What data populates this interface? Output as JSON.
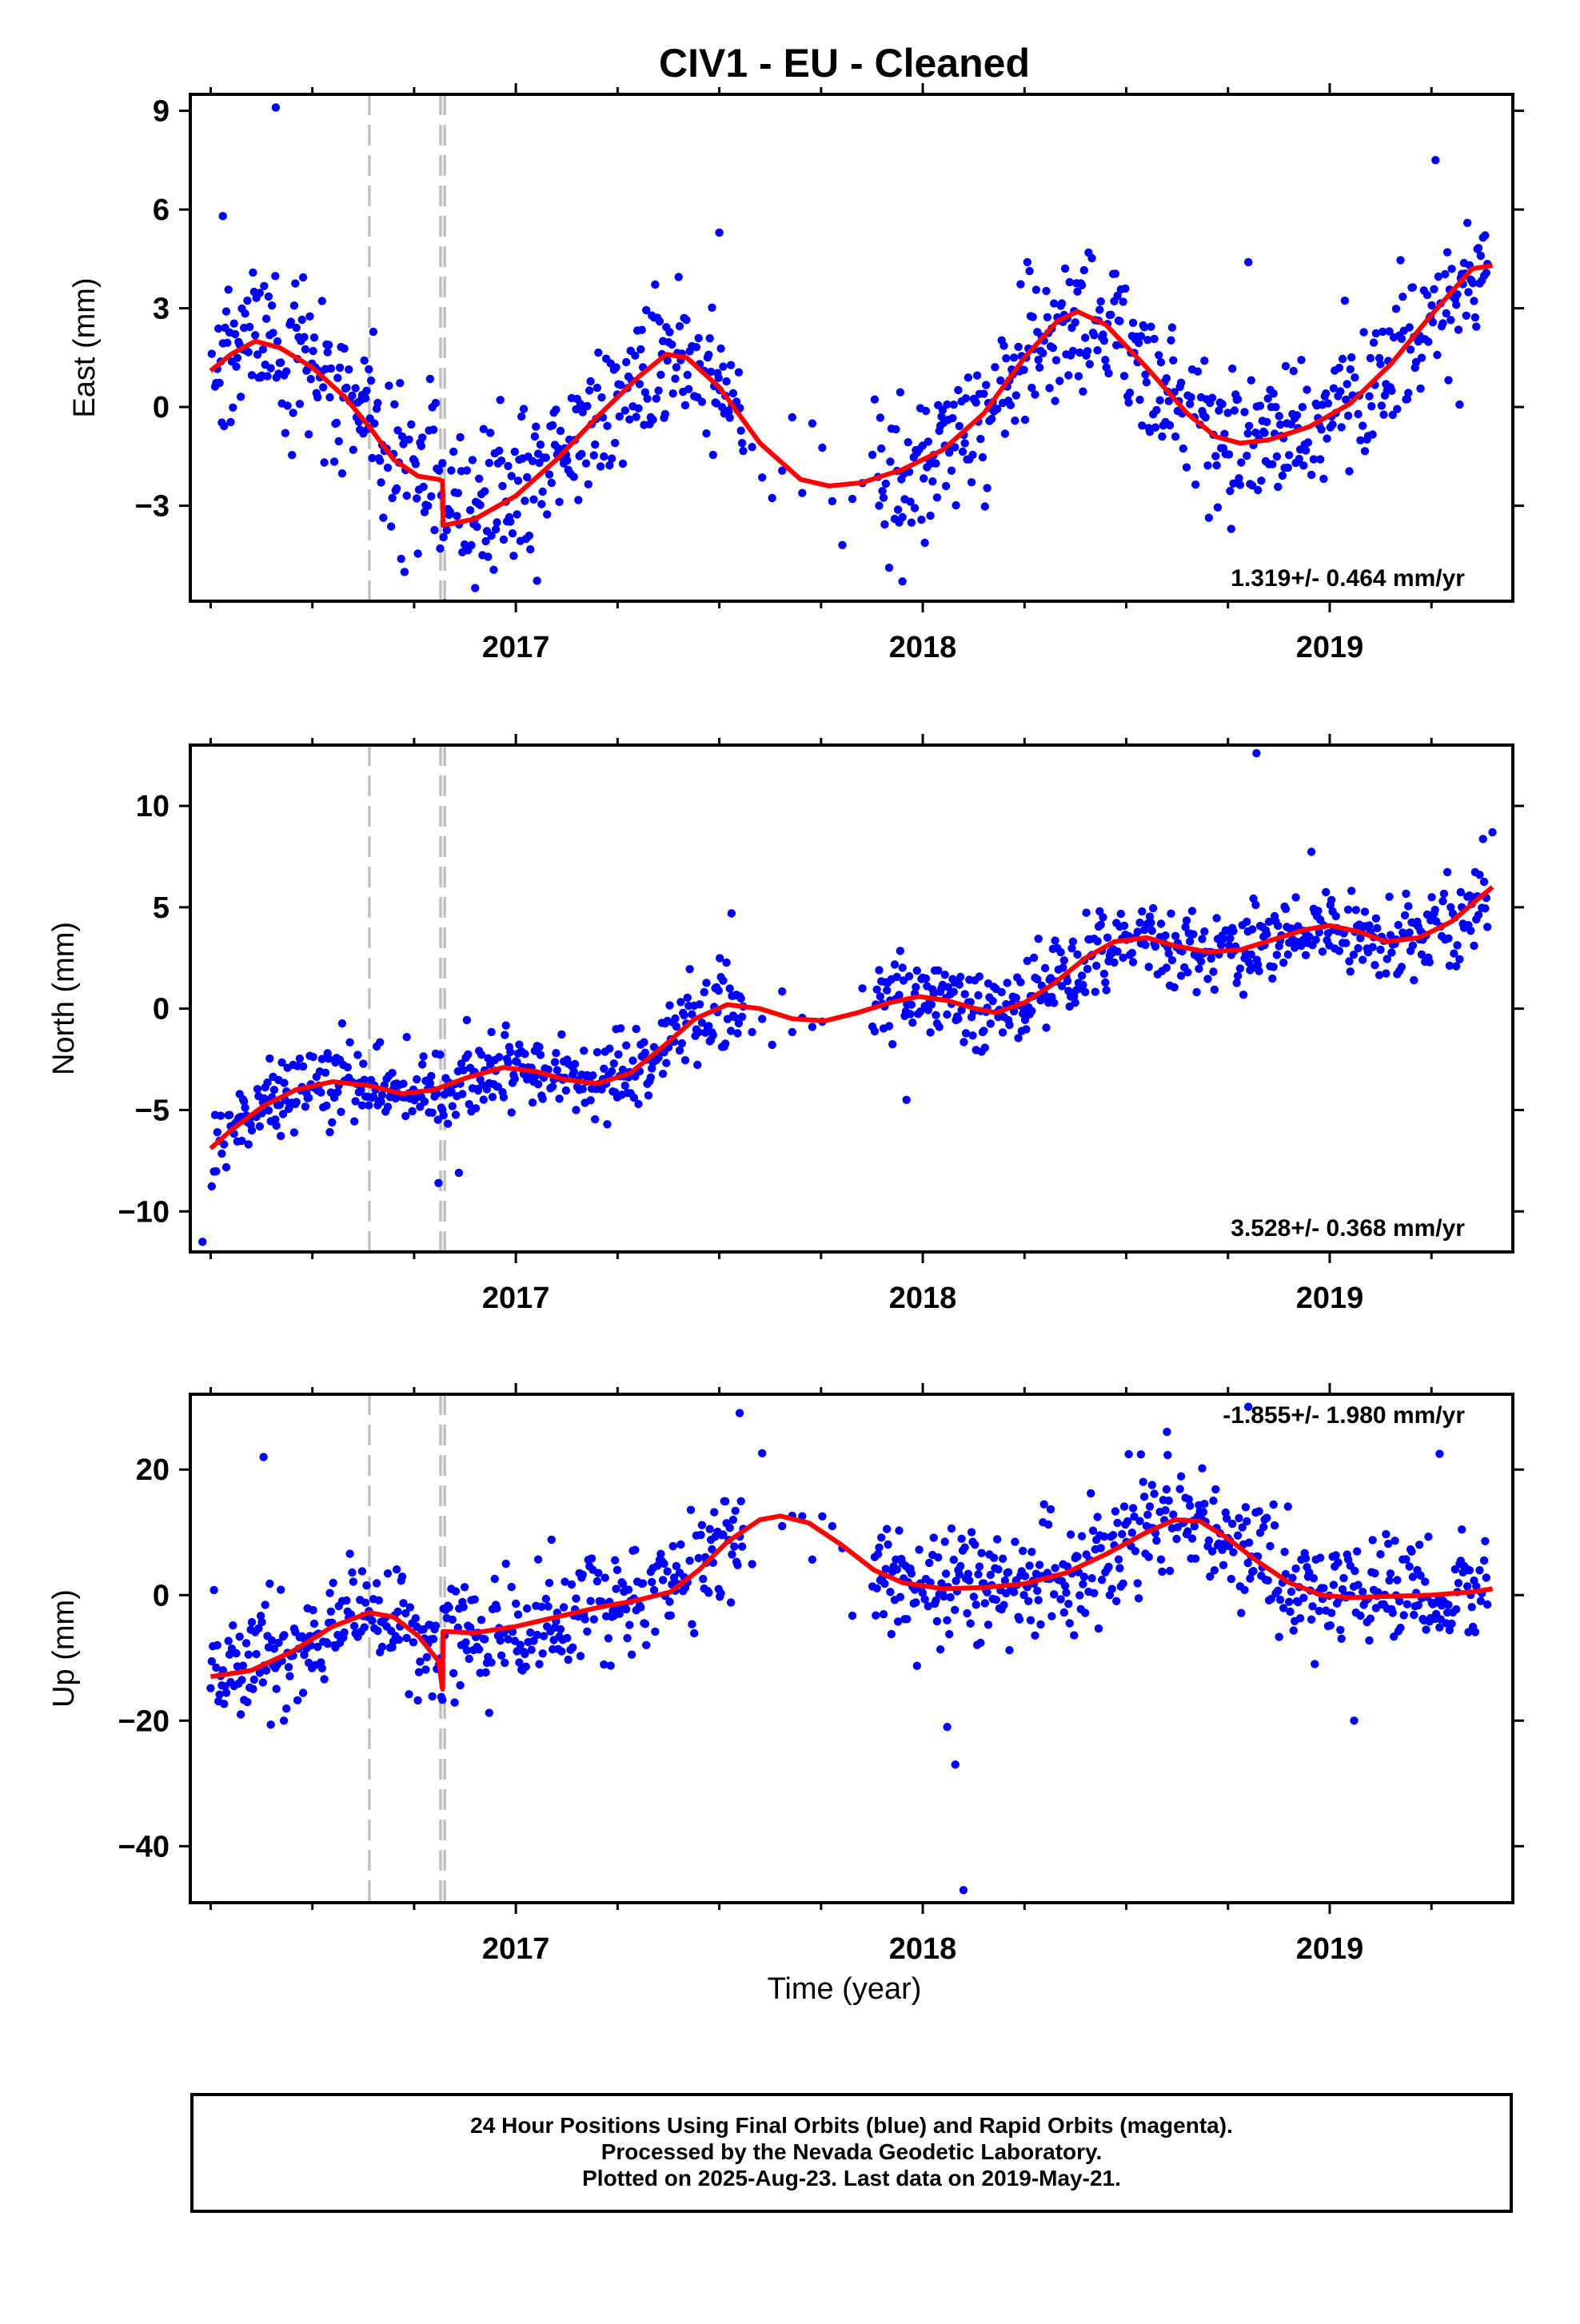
{
  "title": "CIV1  - EU - Cleaned",
  "xlabel": "Time (year)",
  "footer": {
    "line1": "24 Hour Positions Using Final Orbits (blue) and Rapid Orbits (magenta).",
    "line2": "Processed by the Nevada Geodetic Laboratory.",
    "line3": "Plotted on 2025-Aug-23. Last data on 2019-May-21."
  },
  "colors": {
    "points": "#0000ff",
    "model": "#ff0000",
    "offsets": "#c0c0c0",
    "frame": "#000000"
  },
  "chart_data": [
    {
      "type": "scatter",
      "ylabel": "East (mm)",
      "rate_label": "1.319+/- 0.464 mm/yr",
      "xlim": [
        2016.2,
        2019.45
      ],
      "ylim": [
        -5.9,
        9.5
      ],
      "yticks": [
        9,
        6,
        3,
        0,
        -3
      ],
      "xticks": [
        2017,
        2018,
        2019
      ],
      "offset_lines": [
        2016.64,
        2016.815,
        2016.825
      ],
      "scatter_sd": 1.1,
      "model": [
        [
          2016.25,
          1.1
        ],
        [
          2016.3,
          1.6
        ],
        [
          2016.36,
          2.0
        ],
        [
          2016.42,
          1.8
        ],
        [
          2016.5,
          1.2
        ],
        [
          2016.58,
          0.3
        ],
        [
          2016.64,
          -0.6
        ],
        [
          2016.7,
          -1.6
        ],
        [
          2016.76,
          -2.1
        ],
        [
          2016.81,
          -2.2
        ],
        [
          2016.82,
          -2.25
        ],
        [
          2016.821,
          -3.6
        ],
        [
          2016.9,
          -3.4
        ],
        [
          2017.0,
          -2.7
        ],
        [
          2017.1,
          -1.6
        ],
        [
          2017.2,
          -0.3
        ],
        [
          2017.3,
          0.9
        ],
        [
          2017.37,
          1.6
        ],
        [
          2017.42,
          1.5
        ],
        [
          2017.5,
          0.6
        ],
        [
          2017.6,
          -1.1
        ],
        [
          2017.7,
          -2.2
        ],
        [
          2017.77,
          -2.4
        ],
        [
          2017.85,
          -2.3
        ],
        [
          2017.95,
          -1.9
        ],
        [
          2018.05,
          -1.3
        ],
        [
          2018.15,
          -0.2
        ],
        [
          2018.25,
          1.5
        ],
        [
          2018.33,
          2.6
        ],
        [
          2018.38,
          2.9
        ],
        [
          2018.45,
          2.5
        ],
        [
          2018.55,
          1.2
        ],
        [
          2018.65,
          -0.2
        ],
        [
          2018.72,
          -0.9
        ],
        [
          2018.78,
          -1.1
        ],
        [
          2018.85,
          -1.0
        ],
        [
          2018.95,
          -0.6
        ],
        [
          2019.05,
          0.1
        ],
        [
          2019.15,
          1.3
        ],
        [
          2019.25,
          2.8
        ],
        [
          2019.35,
          4.2
        ],
        [
          2019.4,
          4.3
        ]
      ],
      "outliers": [
        [
          2016.41,
          9.1
        ],
        [
          2016.28,
          5.8
        ],
        [
          2017.95,
          -5.3
        ],
        [
          2018.8,
          4.4
        ],
        [
          2019.26,
          7.5
        ],
        [
          2016.9,
          -5.5
        ],
        [
          2017.5,
          5.3
        ]
      ]
    },
    {
      "type": "scatter",
      "ylabel": "North (mm)",
      "rate_label": "3.528+/- 0.368 mm/yr",
      "xlim": [
        2016.2,
        2019.45
      ],
      "ylim": [
        -12,
        13
      ],
      "yticks": [
        10,
        5,
        0,
        -5,
        -10
      ],
      "xticks": [
        2017,
        2018,
        2019
      ],
      "offset_lines": [
        2016.64,
        2016.815,
        2016.825
      ],
      "scatter_sd": 1.0,
      "model": [
        [
          2016.25,
          -6.9
        ],
        [
          2016.3,
          -6.0
        ],
        [
          2016.38,
          -4.8
        ],
        [
          2016.46,
          -4.0
        ],
        [
          2016.55,
          -3.6
        ],
        [
          2016.64,
          -3.8
        ],
        [
          2016.72,
          -4.2
        ],
        [
          2016.8,
          -4.0
        ],
        [
          2016.88,
          -3.4
        ],
        [
          2016.97,
          -2.9
        ],
        [
          2017.05,
          -3.1
        ],
        [
          2017.12,
          -3.5
        ],
        [
          2017.2,
          -3.7
        ],
        [
          2017.28,
          -3.2
        ],
        [
          2017.36,
          -1.9
        ],
        [
          2017.44,
          -0.5
        ],
        [
          2017.52,
          0.2
        ],
        [
          2017.6,
          0.0
        ],
        [
          2017.68,
          -0.5
        ],
        [
          2017.76,
          -0.6
        ],
        [
          2017.84,
          -0.2
        ],
        [
          2017.92,
          0.3
        ],
        [
          2017.99,
          0.6
        ],
        [
          2018.06,
          0.4
        ],
        [
          2018.13,
          0.0
        ],
        [
          2018.18,
          -0.2
        ],
        [
          2018.25,
          0.3
        ],
        [
          2018.32,
          1.2
        ],
        [
          2018.4,
          2.5
        ],
        [
          2018.47,
          3.3
        ],
        [
          2018.55,
          3.5
        ],
        [
          2018.62,
          3.1
        ],
        [
          2018.7,
          2.8
        ],
        [
          2018.78,
          2.9
        ],
        [
          2018.86,
          3.4
        ],
        [
          2018.94,
          3.9
        ],
        [
          2019.0,
          4.1
        ],
        [
          2019.07,
          3.8
        ],
        [
          2019.14,
          3.3
        ],
        [
          2019.22,
          3.5
        ],
        [
          2019.3,
          4.3
        ],
        [
          2019.37,
          5.5
        ],
        [
          2019.4,
          6.0
        ]
      ],
      "outliers": [
        [
          2016.81,
          -8.6
        ],
        [
          2016.86,
          -8.1
        ],
        [
          2016.23,
          -11.5
        ],
        [
          2018.82,
          12.6
        ],
        [
          2017.53,
          4.7
        ],
        [
          2017.96,
          -4.5
        ],
        [
          2019.4,
          8.7
        ]
      ]
    },
    {
      "type": "scatter",
      "ylabel": "Up (mm)",
      "rate_label": "-1.855+/- 1.980 mm/yr",
      "xlim": [
        2016.2,
        2019.45
      ],
      "ylim": [
        -49,
        32
      ],
      "yticks": [
        20,
        0,
        -20,
        -40
      ],
      "xticks": [
        2017,
        2018,
        2019
      ],
      "offset_lines": [
        2016.64,
        2016.815,
        2016.825
      ],
      "scatter_sd": 4.5,
      "model": [
        [
          2016.25,
          -13
        ],
        [
          2016.35,
          -12
        ],
        [
          2016.45,
          -9
        ],
        [
          2016.55,
          -5
        ],
        [
          2016.64,
          -2.8
        ],
        [
          2016.7,
          -3.5
        ],
        [
          2016.76,
          -6.5
        ],
        [
          2016.81,
          -10.5
        ],
        [
          2016.82,
          -15
        ],
        [
          2016.821,
          -5.8
        ],
        [
          2016.9,
          -6.0
        ],
        [
          2017.0,
          -5.0
        ],
        [
          2017.1,
          -3.5
        ],
        [
          2017.2,
          -2.0
        ],
        [
          2017.3,
          -0.8
        ],
        [
          2017.38,
          0.5
        ],
        [
          2017.45,
          4.0
        ],
        [
          2017.52,
          8.5
        ],
        [
          2017.6,
          12.0
        ],
        [
          2017.65,
          12.6
        ],
        [
          2017.72,
          11.5
        ],
        [
          2017.8,
          8.0
        ],
        [
          2017.88,
          4.0
        ],
        [
          2017.95,
          2.0
        ],
        [
          2018.05,
          1.0
        ],
        [
          2018.15,
          1.2
        ],
        [
          2018.25,
          1.8
        ],
        [
          2018.35,
          3.5
        ],
        [
          2018.45,
          6.5
        ],
        [
          2018.55,
          10.0
        ],
        [
          2018.62,
          12.0
        ],
        [
          2018.68,
          11.8
        ],
        [
          2018.75,
          9.0
        ],
        [
          2018.82,
          5.5
        ],
        [
          2018.9,
          2.0
        ],
        [
          2018.98,
          0.0
        ],
        [
          2019.05,
          -0.4
        ],
        [
          2019.15,
          -0.2
        ],
        [
          2019.25,
          0.0
        ],
        [
          2019.35,
          0.5
        ],
        [
          2019.4,
          1.0
        ]
      ],
      "outliers": [
        [
          2016.38,
          22
        ],
        [
          2016.43,
          -20
        ],
        [
          2018.06,
          -21
        ],
        [
          2018.08,
          -27
        ],
        [
          2018.1,
          -47
        ],
        [
          2018.8,
          30
        ],
        [
          2019.27,
          22.5
        ],
        [
          2019.06,
          -20
        ],
        [
          2018.6,
          26
        ],
        [
          2017.55,
          29
        ]
      ]
    }
  ]
}
